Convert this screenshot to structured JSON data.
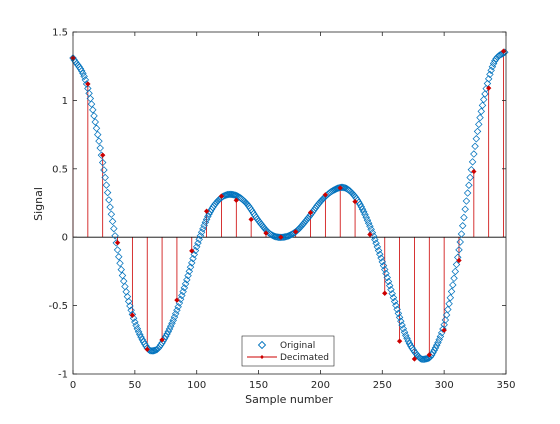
{
  "chart_data": {
    "type": "scatter",
    "title": "",
    "xlabel": "Sample number",
    "ylabel": "Signal",
    "xlim": [
      0,
      350
    ],
    "ylim": [
      -1,
      1.5
    ],
    "xticks": [
      0,
      50,
      100,
      150,
      200,
      250,
      300,
      350
    ],
    "yticks": [
      -1,
      -0.5,
      0,
      0.5,
      1,
      1.5
    ],
    "xtick_labels": [
      "0",
      "50",
      "100",
      "150",
      "200",
      "250",
      "300",
      "350"
    ],
    "ytick_labels": [
      "-1",
      "-0.5",
      "0",
      "0.5",
      "1",
      "1.5"
    ],
    "grid": false,
    "legend_position": "bottom-center",
    "original_keypoints": {
      "x": [
        0,
        10,
        20,
        30,
        40,
        50,
        60,
        65,
        70,
        80,
        90,
        100,
        110,
        120,
        130,
        140,
        150,
        160,
        170,
        180,
        190,
        200,
        210,
        220,
        230,
        240,
        250,
        260,
        270,
        280,
        285,
        290,
        300,
        310,
        320,
        330,
        340,
        350
      ],
      "y": [
        1.31,
        1.15,
        0.75,
        0.22,
        -0.28,
        -0.62,
        -0.81,
        -0.83,
        -0.8,
        -0.63,
        -0.37,
        -0.07,
        0.17,
        0.29,
        0.31,
        0.25,
        0.12,
        0.02,
        0.0,
        0.04,
        0.14,
        0.26,
        0.34,
        0.36,
        0.27,
        0.08,
        -0.18,
        -0.47,
        -0.74,
        -0.88,
        -0.89,
        -0.86,
        -0.64,
        -0.2,
        0.38,
        0.92,
        1.27,
        1.36
      ]
    },
    "series": [
      {
        "name": "Original",
        "style": "diamond-marker",
        "color": "#0072BD",
        "values": []
      },
      {
        "name": "Decimated",
        "style": "stem",
        "color": "#CC0000",
        "x": [
          0,
          12,
          24,
          36,
          48,
          60,
          72,
          84,
          96,
          108,
          120,
          132,
          144,
          156,
          168,
          180,
          192,
          204,
          216,
          228,
          240,
          252,
          264,
          276,
          288,
          300,
          312,
          324,
          336,
          348
        ],
        "values": [
          1.31,
          1.12,
          0.6,
          -0.04,
          -0.57,
          -0.82,
          -0.75,
          -0.46,
          -0.1,
          0.19,
          0.3,
          0.27,
          0.13,
          0.03,
          0.0,
          0.04,
          0.18,
          0.31,
          0.36,
          0.26,
          0.02,
          -0.41,
          -0.76,
          -0.89,
          -0.86,
          -0.68,
          -0.17,
          0.48,
          1.09,
          1.36
        ]
      }
    ]
  }
}
